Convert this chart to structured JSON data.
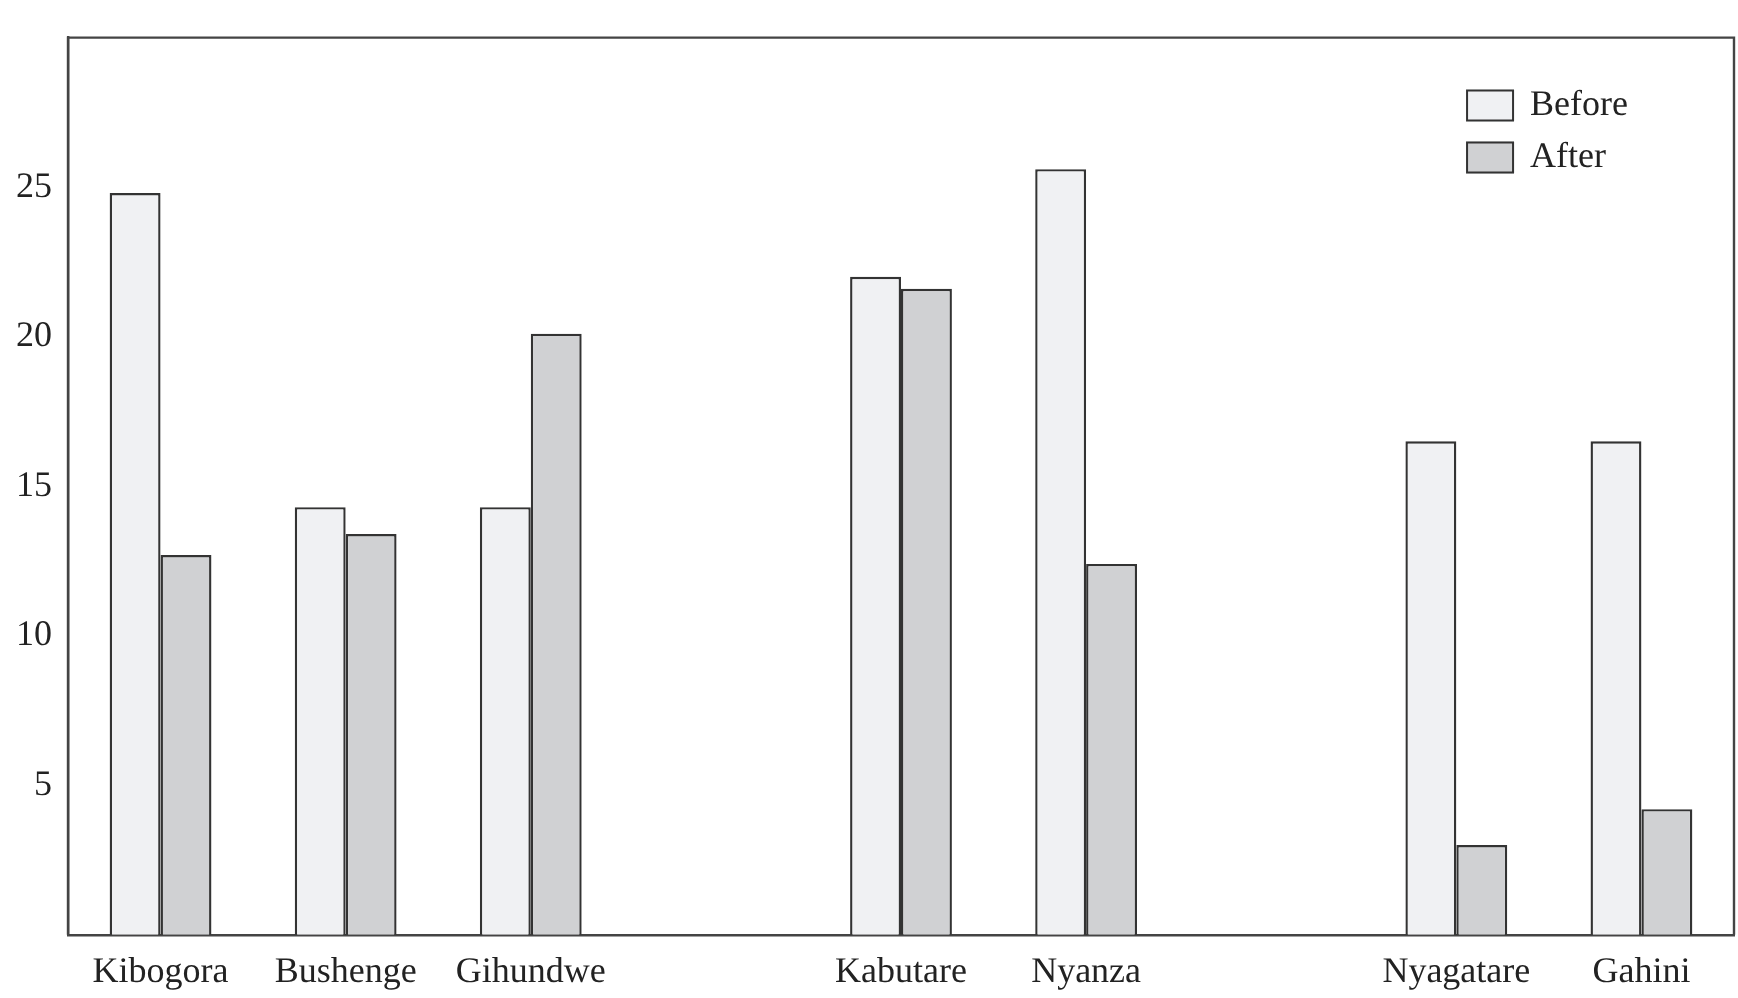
{
  "chart_data": {
    "type": "bar",
    "categories": [
      "Kibogora",
      "Bushenge",
      "Gihundwe",
      null,
      "Kabutare",
      "Nyanza",
      null,
      "Nyagatare",
      "Gahini"
    ],
    "series": [
      {
        "name": "Before",
        "color": "#f0f1f3",
        "values": [
          24.8,
          14.3,
          14.3,
          null,
          22.0,
          25.6,
          null,
          16.5,
          16.5
        ]
      },
      {
        "name": "After",
        "color": "#d0d1d3",
        "values": [
          12.7,
          13.4,
          20.1,
          null,
          21.6,
          12.4,
          null,
          3.0,
          4.2
        ]
      }
    ],
    "ylim": [
      0,
      30
    ],
    "yticks": [
      5,
      10,
      15,
      20,
      25
    ],
    "grid": false,
    "legend": "top right"
  }
}
